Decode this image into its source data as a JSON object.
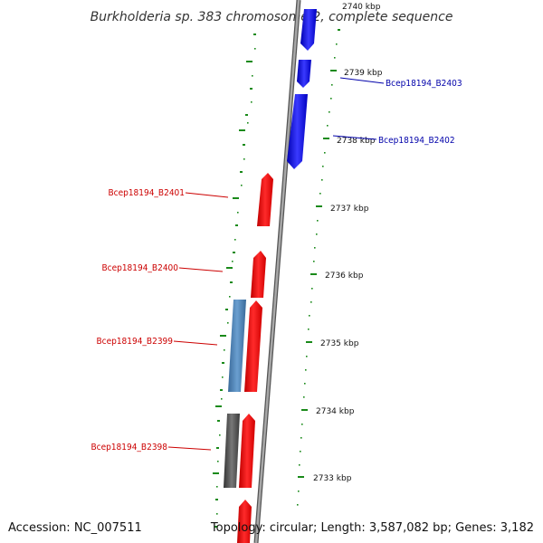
{
  "title": "Burkholderia sp. 383 chromosome 2, complete sequence",
  "footer": {
    "accession": "Accession: NC_007511",
    "summary": "Topology: circular; Length: 3,587,082 bp; Genes: 3,182"
  },
  "colors": {
    "forward_gene": "#ff0000",
    "reverse_gene": "#0000ff",
    "other_gene_blue": "#4a7fb5",
    "other_gene_grey": "#555555",
    "ticks": "#1a8a1a",
    "backbone": "#888888",
    "forward_label": "#cc0000",
    "reverse_label": "#0000aa"
  },
  "scale_labels": [
    {
      "id": "2740",
      "text": "2740 kbp"
    },
    {
      "id": "2739",
      "text": "2739 kbp"
    },
    {
      "id": "2738",
      "text": "2738 kbp"
    },
    {
      "id": "2737",
      "text": "2737 kbp"
    },
    {
      "id": "2736",
      "text": "2736 kbp"
    },
    {
      "id": "2735",
      "text": "2735 kbp"
    },
    {
      "id": "2734",
      "text": "2734 kbp"
    },
    {
      "id": "2733",
      "text": "2733 kbp"
    }
  ],
  "genes": [
    {
      "id": "B2403",
      "label": "Bcep18194_B2403",
      "strand": "reverse"
    },
    {
      "id": "B2402",
      "label": "Bcep18194_B2402",
      "strand": "reverse"
    },
    {
      "id": "B2401",
      "label": "Bcep18194_B2401",
      "strand": "forward"
    },
    {
      "id": "B2400",
      "label": "Bcep18194_B2400",
      "strand": "forward"
    },
    {
      "id": "B2399",
      "label": "Bcep18194_B2399",
      "strand": "forward"
    },
    {
      "id": "B2398",
      "label": "Bcep18194_B2398",
      "strand": "forward"
    }
  ]
}
